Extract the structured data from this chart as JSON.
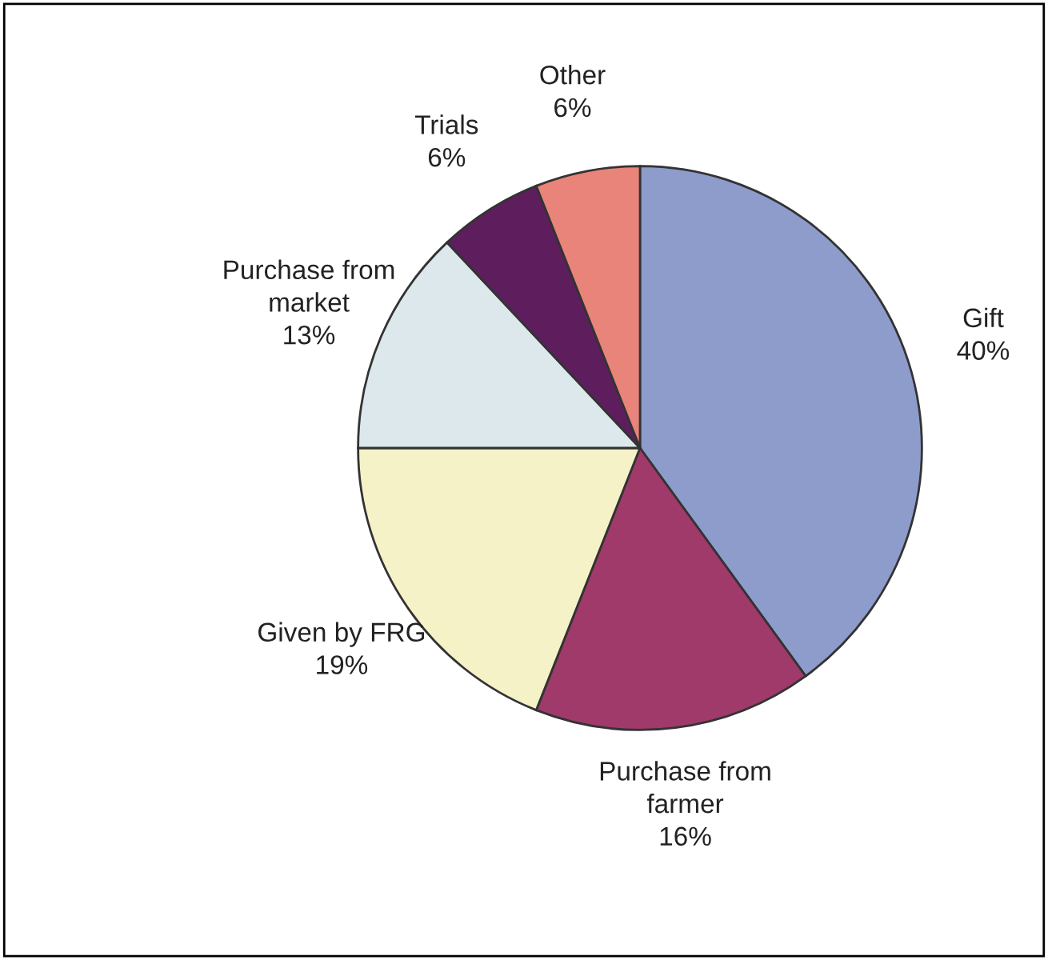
{
  "chart_data": {
    "type": "pie",
    "categories": [
      "Gift",
      "Purchase from\nfarmer",
      "Given by FRG",
      "Purchase from\nmarket",
      "Trials",
      "Other"
    ],
    "values": [
      40,
      16,
      19,
      13,
      6,
      6
    ],
    "value_labels": [
      "40%",
      "16%",
      "19%",
      "13%",
      "6%",
      "6%"
    ],
    "colors": [
      "#8e9ccc",
      "#a03a6a",
      "#f5f2c8",
      "#dde8ec",
      "#5e1e5e",
      "#e8847a"
    ]
  }
}
